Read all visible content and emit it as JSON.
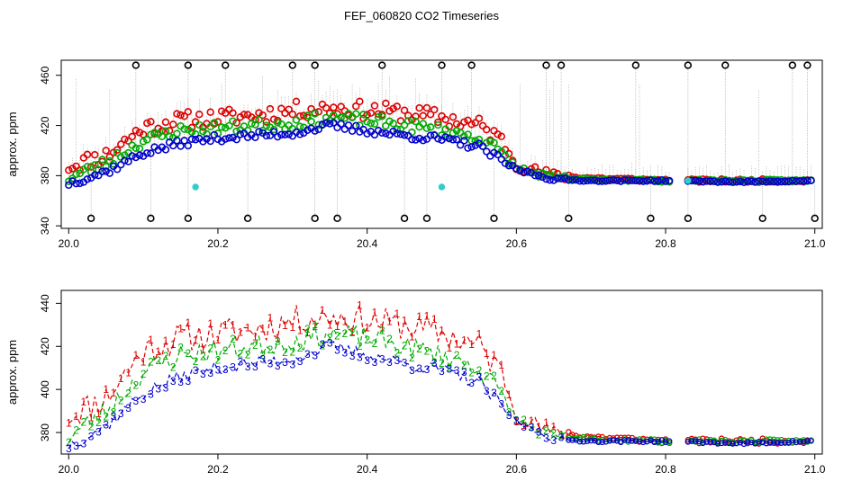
{
  "title": "FEF_060820  CO2 Timeseries",
  "chart_data": [
    {
      "type": "scatter",
      "panel": "top",
      "ylabel": "approx. ppm",
      "xlabel": "",
      "xlim": [
        19.99,
        21.01
      ],
      "ylim": [
        338,
        472
      ],
      "xticks": [
        20.0,
        20.2,
        20.4,
        20.6,
        20.8,
        21.0
      ],
      "xtick_labels": [
        "20.0",
        "20.2",
        "20.4",
        "20.6",
        "20.8",
        "21.0"
      ],
      "yticks": [
        340,
        380,
        420,
        460
      ],
      "ytick_labels": [
        "340",
        "380",
        "420",
        "460"
      ],
      "grid": false,
      "series_colors": {
        "1": "#dd0000",
        "2": "#00aa00",
        "3": "#0000cc",
        "high": "#000000",
        "low": "#000000",
        "flag": "#33cccc",
        "link": "#999999"
      },
      "series": [
        {
          "name": "1",
          "x": [
            20.0,
            20.05,
            20.1,
            20.15,
            20.2,
            20.25,
            20.3,
            20.35,
            20.4,
            20.45,
            20.5,
            20.55,
            20.58,
            20.6,
            20.65,
            20.7,
            20.8,
            20.9,
            21.0
          ],
          "values": [
            388,
            396,
            418,
            424,
            426,
            428,
            432,
            434,
            432,
            430,
            426,
            420,
            408,
            388,
            380,
            378,
            376,
            376,
            376
          ]
        },
        {
          "name": "2",
          "x": [
            20.0,
            20.05,
            20.1,
            20.15,
            20.2,
            20.25,
            20.3,
            20.35,
            20.4,
            20.45,
            20.5,
            20.55,
            20.58,
            20.6,
            20.65,
            20.7,
            20.8,
            20.9,
            21.0
          ],
          "values": [
            378,
            390,
            408,
            416,
            418,
            420,
            422,
            426,
            424,
            420,
            416,
            410,
            398,
            386,
            378,
            377,
            376,
            376,
            376
          ]
        },
        {
          "name": "3",
          "x": [
            20.0,
            20.05,
            20.1,
            20.15,
            20.2,
            20.25,
            20.3,
            20.35,
            20.4,
            20.45,
            20.5,
            20.55,
            20.58,
            20.6,
            20.65,
            20.7,
            20.8,
            20.9,
            21.0
          ],
          "values": [
            374,
            383,
            398,
            406,
            410,
            412,
            414,
            420,
            416,
            412,
            409,
            403,
            392,
            385,
            377,
            376,
            376,
            375,
            376
          ]
        },
        {
          "name": "high",
          "x": [
            20.09,
            20.16,
            20.21,
            20.3,
            20.33,
            20.42,
            20.5,
            20.54,
            20.64,
            20.66,
            20.76,
            20.83,
            20.88,
            20.97,
            20.99
          ],
          "values": [
            468,
            468,
            468,
            468,
            468,
            468,
            468,
            468,
            468,
            468,
            468,
            468,
            468,
            468,
            468
          ]
        },
        {
          "name": "low",
          "x": [
            20.03,
            20.11,
            20.16,
            20.24,
            20.33,
            20.36,
            20.45,
            20.48,
            20.57,
            20.67,
            20.78,
            20.83,
            20.93,
            21.0
          ],
          "values": [
            346,
            346,
            346,
            346,
            346,
            346,
            346,
            346,
            346,
            346,
            346,
            346,
            346,
            346
          ]
        },
        {
          "name": "flag",
          "x": [
            20.17,
            20.5,
            20.83
          ],
          "values": [
            371,
            371,
            376
          ]
        }
      ]
    },
    {
      "type": "line",
      "panel": "bottom",
      "ylabel": "approx. ppm",
      "xlabel": "",
      "xlim": [
        19.99,
        21.01
      ],
      "ylim": [
        370,
        446
      ],
      "xticks": [
        20.0,
        20.2,
        20.4,
        20.6,
        20.8,
        21.0
      ],
      "xtick_labels": [
        "20.0",
        "20.2",
        "20.4",
        "20.6",
        "20.8",
        "21.0"
      ],
      "yticks": [
        380,
        400,
        420,
        440
      ],
      "ytick_labels": [
        "380",
        "400",
        "420",
        "440"
      ],
      "grid": false,
      "series": [
        {
          "name": "1",
          "label": "1",
          "color": "#dd0000",
          "x": [
            20.0,
            20.05,
            20.1,
            20.15,
            20.2,
            20.25,
            20.3,
            20.35,
            20.4,
            20.45,
            20.5,
            20.55,
            20.58,
            20.6,
            20.65,
            20.7,
            20.8,
            20.9,
            21.0
          ],
          "values": [
            388,
            396,
            418,
            424,
            426,
            428,
            432,
            434,
            432,
            430,
            426,
            420,
            408,
            388,
            380,
            378,
            376,
            376,
            376
          ]
        },
        {
          "name": "2",
          "label": "2",
          "color": "#00aa00",
          "x": [
            20.0,
            20.05,
            20.1,
            20.15,
            20.2,
            20.25,
            20.3,
            20.35,
            20.4,
            20.45,
            20.5,
            20.55,
            20.58,
            20.6,
            20.65,
            20.7,
            20.8,
            20.9,
            21.0
          ],
          "values": [
            378,
            390,
            408,
            416,
            418,
            420,
            422,
            426,
            424,
            420,
            416,
            410,
            398,
            386,
            378,
            377,
            376,
            376,
            376
          ]
        },
        {
          "name": "3",
          "label": "3",
          "color": "#0000cc",
          "x": [
            20.0,
            20.05,
            20.1,
            20.15,
            20.2,
            20.25,
            20.3,
            20.35,
            20.4,
            20.45,
            20.5,
            20.55,
            20.58,
            20.6,
            20.65,
            20.7,
            20.8,
            20.9,
            21.0
          ],
          "values": [
            374,
            383,
            398,
            406,
            410,
            412,
            414,
            420,
            416,
            412,
            409,
            403,
            392,
            385,
            377,
            376,
            376,
            375,
            376
          ]
        }
      ]
    }
  ]
}
